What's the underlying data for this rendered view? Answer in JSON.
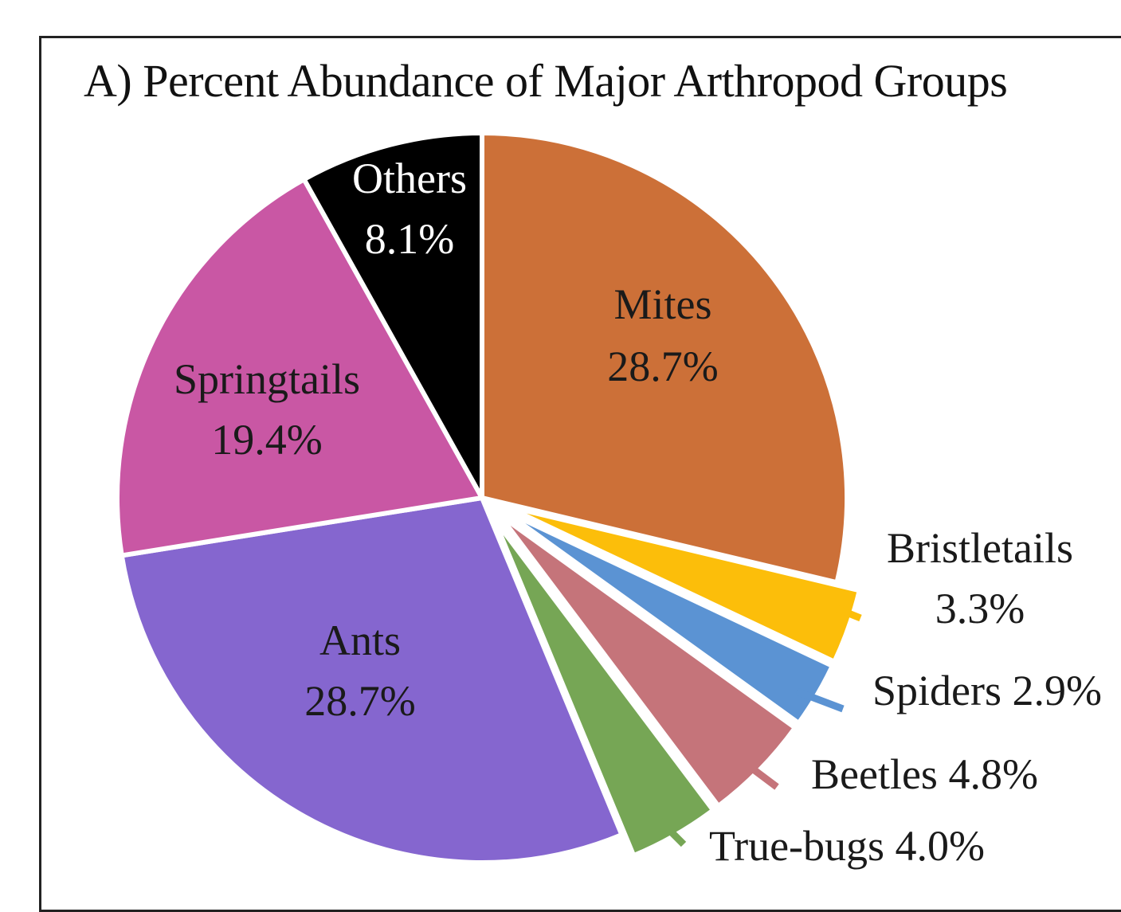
{
  "chart_data": {
    "type": "pie",
    "title": "A) Percent Abundance of Major Arthropod Groups",
    "unit": "%",
    "slices": [
      {
        "name": "Mites",
        "value": 28.7,
        "display": "28.7%",
        "color": "#cc7038",
        "label_color": "#1a1a1a",
        "exploded": false
      },
      {
        "name": "Bristletails",
        "value": 3.3,
        "display": "3.3%",
        "color": "#fcbe0a",
        "label_color": "#1a1a1a",
        "exploded": true
      },
      {
        "name": "Spiders",
        "value": 2.9,
        "display": "2.9%",
        "color": "#5b93d3",
        "label_color": "#1a1a1a",
        "exploded": true
      },
      {
        "name": "Beetles",
        "value": 4.8,
        "display": "4.8%",
        "color": "#c5747a",
        "label_color": "#1a1a1a",
        "exploded": true
      },
      {
        "name": "True-bugs",
        "value": 4.0,
        "display": "4.0%",
        "color": "#76a655",
        "label_color": "#1a1a1a",
        "exploded": true
      },
      {
        "name": "Ants",
        "value": 28.7,
        "display": "28.7%",
        "color": "#8566cf",
        "label_color": "#1a1a1a",
        "exploded": false
      },
      {
        "name": "Springtails",
        "value": 19.4,
        "display": "19.4%",
        "color": "#c957a4",
        "label_color": "#1a1a1a",
        "exploded": false
      },
      {
        "name": "Others",
        "value": 8.1,
        "display": "8.1%",
        "color": "#000000",
        "label_color": "#ffffff",
        "exploded": false
      }
    ],
    "start_angle": "12 o'clock",
    "direction": "clockwise",
    "legend": "none"
  }
}
